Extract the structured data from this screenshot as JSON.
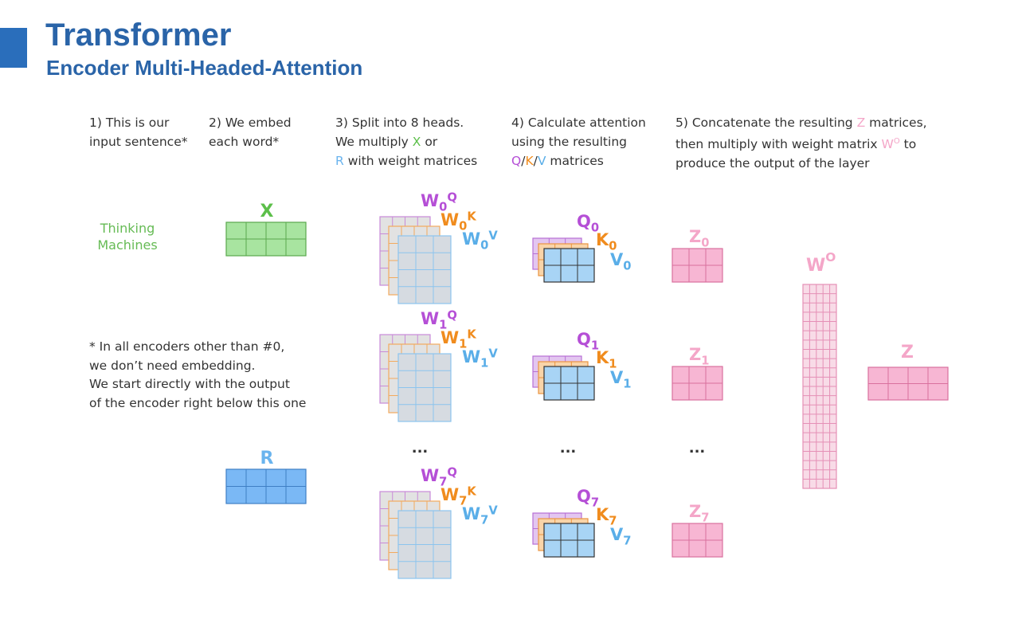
{
  "header": {
    "title": "Transformer",
    "subtitle": "Encoder Multi-Headed-Attention"
  },
  "steps": [
    {
      "lines": [
        [
          "1) This is our"
        ],
        [
          "input sentence*"
        ]
      ]
    },
    {
      "lines": [
        [
          "2) We embed"
        ],
        [
          "each word*"
        ]
      ]
    },
    {
      "lines": [
        [
          "3) Split into 8 heads."
        ],
        [
          "We multiply",
          "X",
          "or"
        ],
        [
          "R",
          "with weight matrices"
        ]
      ]
    },
    {
      "lines": [
        [
          "4) Calculate attention"
        ],
        [
          "using the resulting"
        ],
        [
          "Q",
          "/",
          "K",
          "/",
          "V",
          "matrices"
        ]
      ]
    },
    {
      "lines": [
        [
          "5) Concatenate the resulting",
          "Z",
          "matrices,"
        ],
        [
          "then multiply with weight matrix",
          "W",
          "O",
          "to"
        ],
        [
          "produce the output of the layer"
        ]
      ]
    }
  ],
  "input_sentence": [
    "Thinking",
    "Machines"
  ],
  "note": [
    "* In all encoders other than #0,",
    "we don’t need embedding.",
    "We start directly with the output",
    "of the encoder right below this one"
  ],
  "letters": {
    "w": "W",
    "q": "Q",
    "k": "K",
    "v": "V",
    "z": "Z",
    "x": "X",
    "r": "R",
    "o": "O"
  },
  "heads": [
    {
      "index": "0"
    },
    {
      "index": "1"
    },
    {
      "index": "7"
    }
  ],
  "ellipsis": "..."
}
